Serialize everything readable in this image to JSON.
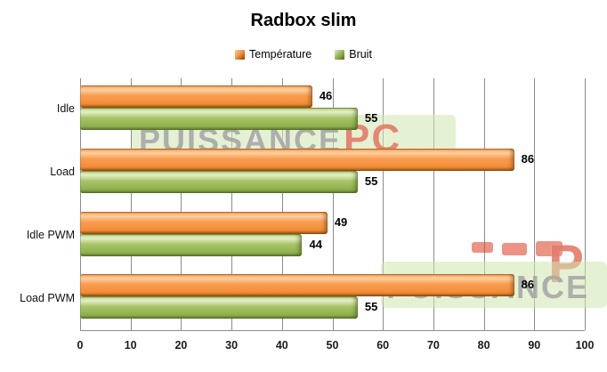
{
  "title": "Radbox slim",
  "watermark": {
    "brand": "PUISSANCE",
    "pc": "PC",
    "p": "P"
  },
  "chart_data": {
    "type": "bar",
    "orientation": "horizontal",
    "title": "Radbox slim",
    "categories": [
      "Idle",
      "Load",
      "Idle PWM",
      "Load PWM"
    ],
    "series": [
      {
        "name": "Température",
        "color": "#F79646",
        "values": [
          46,
          86,
          49,
          86
        ]
      },
      {
        "name": "Bruit",
        "color": "#9BBB59",
        "values": [
          55,
          55,
          44,
          55
        ]
      }
    ],
    "xlim": [
      0,
      100
    ],
    "xticks": [
      0,
      10,
      20,
      30,
      40,
      50,
      60,
      70,
      80,
      90,
      100
    ],
    "xlabel": "",
    "ylabel": "",
    "grid": true,
    "gridline_color": "#8c8c8c",
    "legend_position": "top",
    "data_labels": true
  }
}
